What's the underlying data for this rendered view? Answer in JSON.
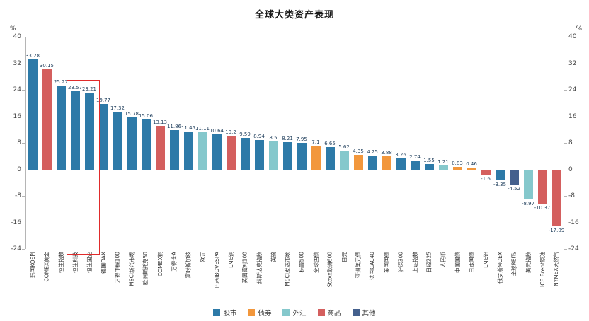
{
  "title": "全球大类资产表现",
  "axis": {
    "unit": "%",
    "ticks": [
      40,
      32,
      24,
      16,
      8,
      0,
      -8,
      -16,
      -24
    ],
    "ymin": -24,
    "ymax": 40
  },
  "legend": [
    {
      "label": "股市",
      "color": "#2d7aa8"
    },
    {
      "label": "债券",
      "color": "#f2973c"
    },
    {
      "label": "外汇",
      "color": "#85c8cc"
    },
    {
      "label": "商品",
      "color": "#d45f5e"
    },
    {
      "label": "其他",
      "color": "#44608d"
    }
  ],
  "highlight": {
    "labels": [
      "恒生科技",
      "恒生国企"
    ],
    "border_color": "#e02b2b"
  },
  "chart_data": {
    "type": "bar",
    "title": "全球大类资产表现",
    "ylabel": "%",
    "ylim": [
      -24,
      40
    ],
    "grid": false,
    "legend_position": "bottom",
    "bars": [
      {
        "label": "韩国KOSPI",
        "value": 33.28,
        "category": "股市"
      },
      {
        "label": "COMEX黄金",
        "value": 30.15,
        "category": "商品"
      },
      {
        "label": "恒生指数",
        "value": 25.27,
        "category": "股市"
      },
      {
        "label": "恒生科技",
        "value": 23.57,
        "category": "股市"
      },
      {
        "label": "恒生国企",
        "value": 23.21,
        "category": "股市"
      },
      {
        "label": "德国DAX",
        "value": 19.77,
        "category": "股市"
      },
      {
        "label": "万得中概100",
        "value": 17.32,
        "category": "股市"
      },
      {
        "label": "MSCI新兴市场",
        "value": 15.78,
        "category": "股市"
      },
      {
        "label": "欧洲斯托克50",
        "value": 15.06,
        "category": "股市"
      },
      {
        "label": "COMEX铜",
        "value": 13.13,
        "category": "商品"
      },
      {
        "label": "万得全A",
        "value": 11.86,
        "category": "股市"
      },
      {
        "label": "富时新加坡",
        "value": 11.45,
        "category": "股市"
      },
      {
        "label": "欧元",
        "value": 11.11,
        "category": "外汇"
      },
      {
        "label": "巴西IBOVESPA",
        "value": 10.64,
        "category": "股市"
      },
      {
        "label": "LME铜",
        "value": 10.2,
        "category": "商品"
      },
      {
        "label": "英国富时100",
        "value": 9.59,
        "category": "股市"
      },
      {
        "label": "纳斯达克指数",
        "value": 8.94,
        "category": "股市"
      },
      {
        "label": "英镑",
        "value": 8.5,
        "category": "外汇"
      },
      {
        "label": "MSCI发达市场",
        "value": 8.21,
        "category": "股市"
      },
      {
        "label": "标普500",
        "value": 7.95,
        "category": "股市"
      },
      {
        "label": "全球国债",
        "value": 7.1,
        "category": "债券"
      },
      {
        "label": "Stoxx欧洲600",
        "value": 6.65,
        "category": "股市"
      },
      {
        "label": "日元",
        "value": 5.62,
        "category": "外汇"
      },
      {
        "label": "亚洲美元债",
        "value": 4.35,
        "category": "债券"
      },
      {
        "label": "法国CAC40",
        "value": 4.25,
        "category": "股市"
      },
      {
        "label": "美国国债",
        "value": 3.88,
        "category": "债券"
      },
      {
        "label": "沪深300",
        "value": 3.26,
        "category": "股市"
      },
      {
        "label": "上证指数",
        "value": 2.74,
        "category": "股市"
      },
      {
        "label": "日经225",
        "value": 1.55,
        "category": "股市"
      },
      {
        "label": "人民币",
        "value": 1.21,
        "category": "外汇"
      },
      {
        "label": "中国国债",
        "value": 0.83,
        "category": "债券"
      },
      {
        "label": "日本国债",
        "value": 0.46,
        "category": "债券"
      },
      {
        "label": "LME铝",
        "value": -1.6,
        "category": "商品"
      },
      {
        "label": "俄罗斯MOEX",
        "value": -3.35,
        "category": "股市"
      },
      {
        "label": "全球REITs",
        "value": -4.52,
        "category": "其他"
      },
      {
        "label": "美元指数",
        "value": -8.97,
        "category": "外汇"
      },
      {
        "label": "ICE Brent原油",
        "value": -10.37,
        "category": "商品"
      },
      {
        "label": "NYMEX天然气",
        "value": -17.09,
        "category": "商品"
      }
    ]
  }
}
